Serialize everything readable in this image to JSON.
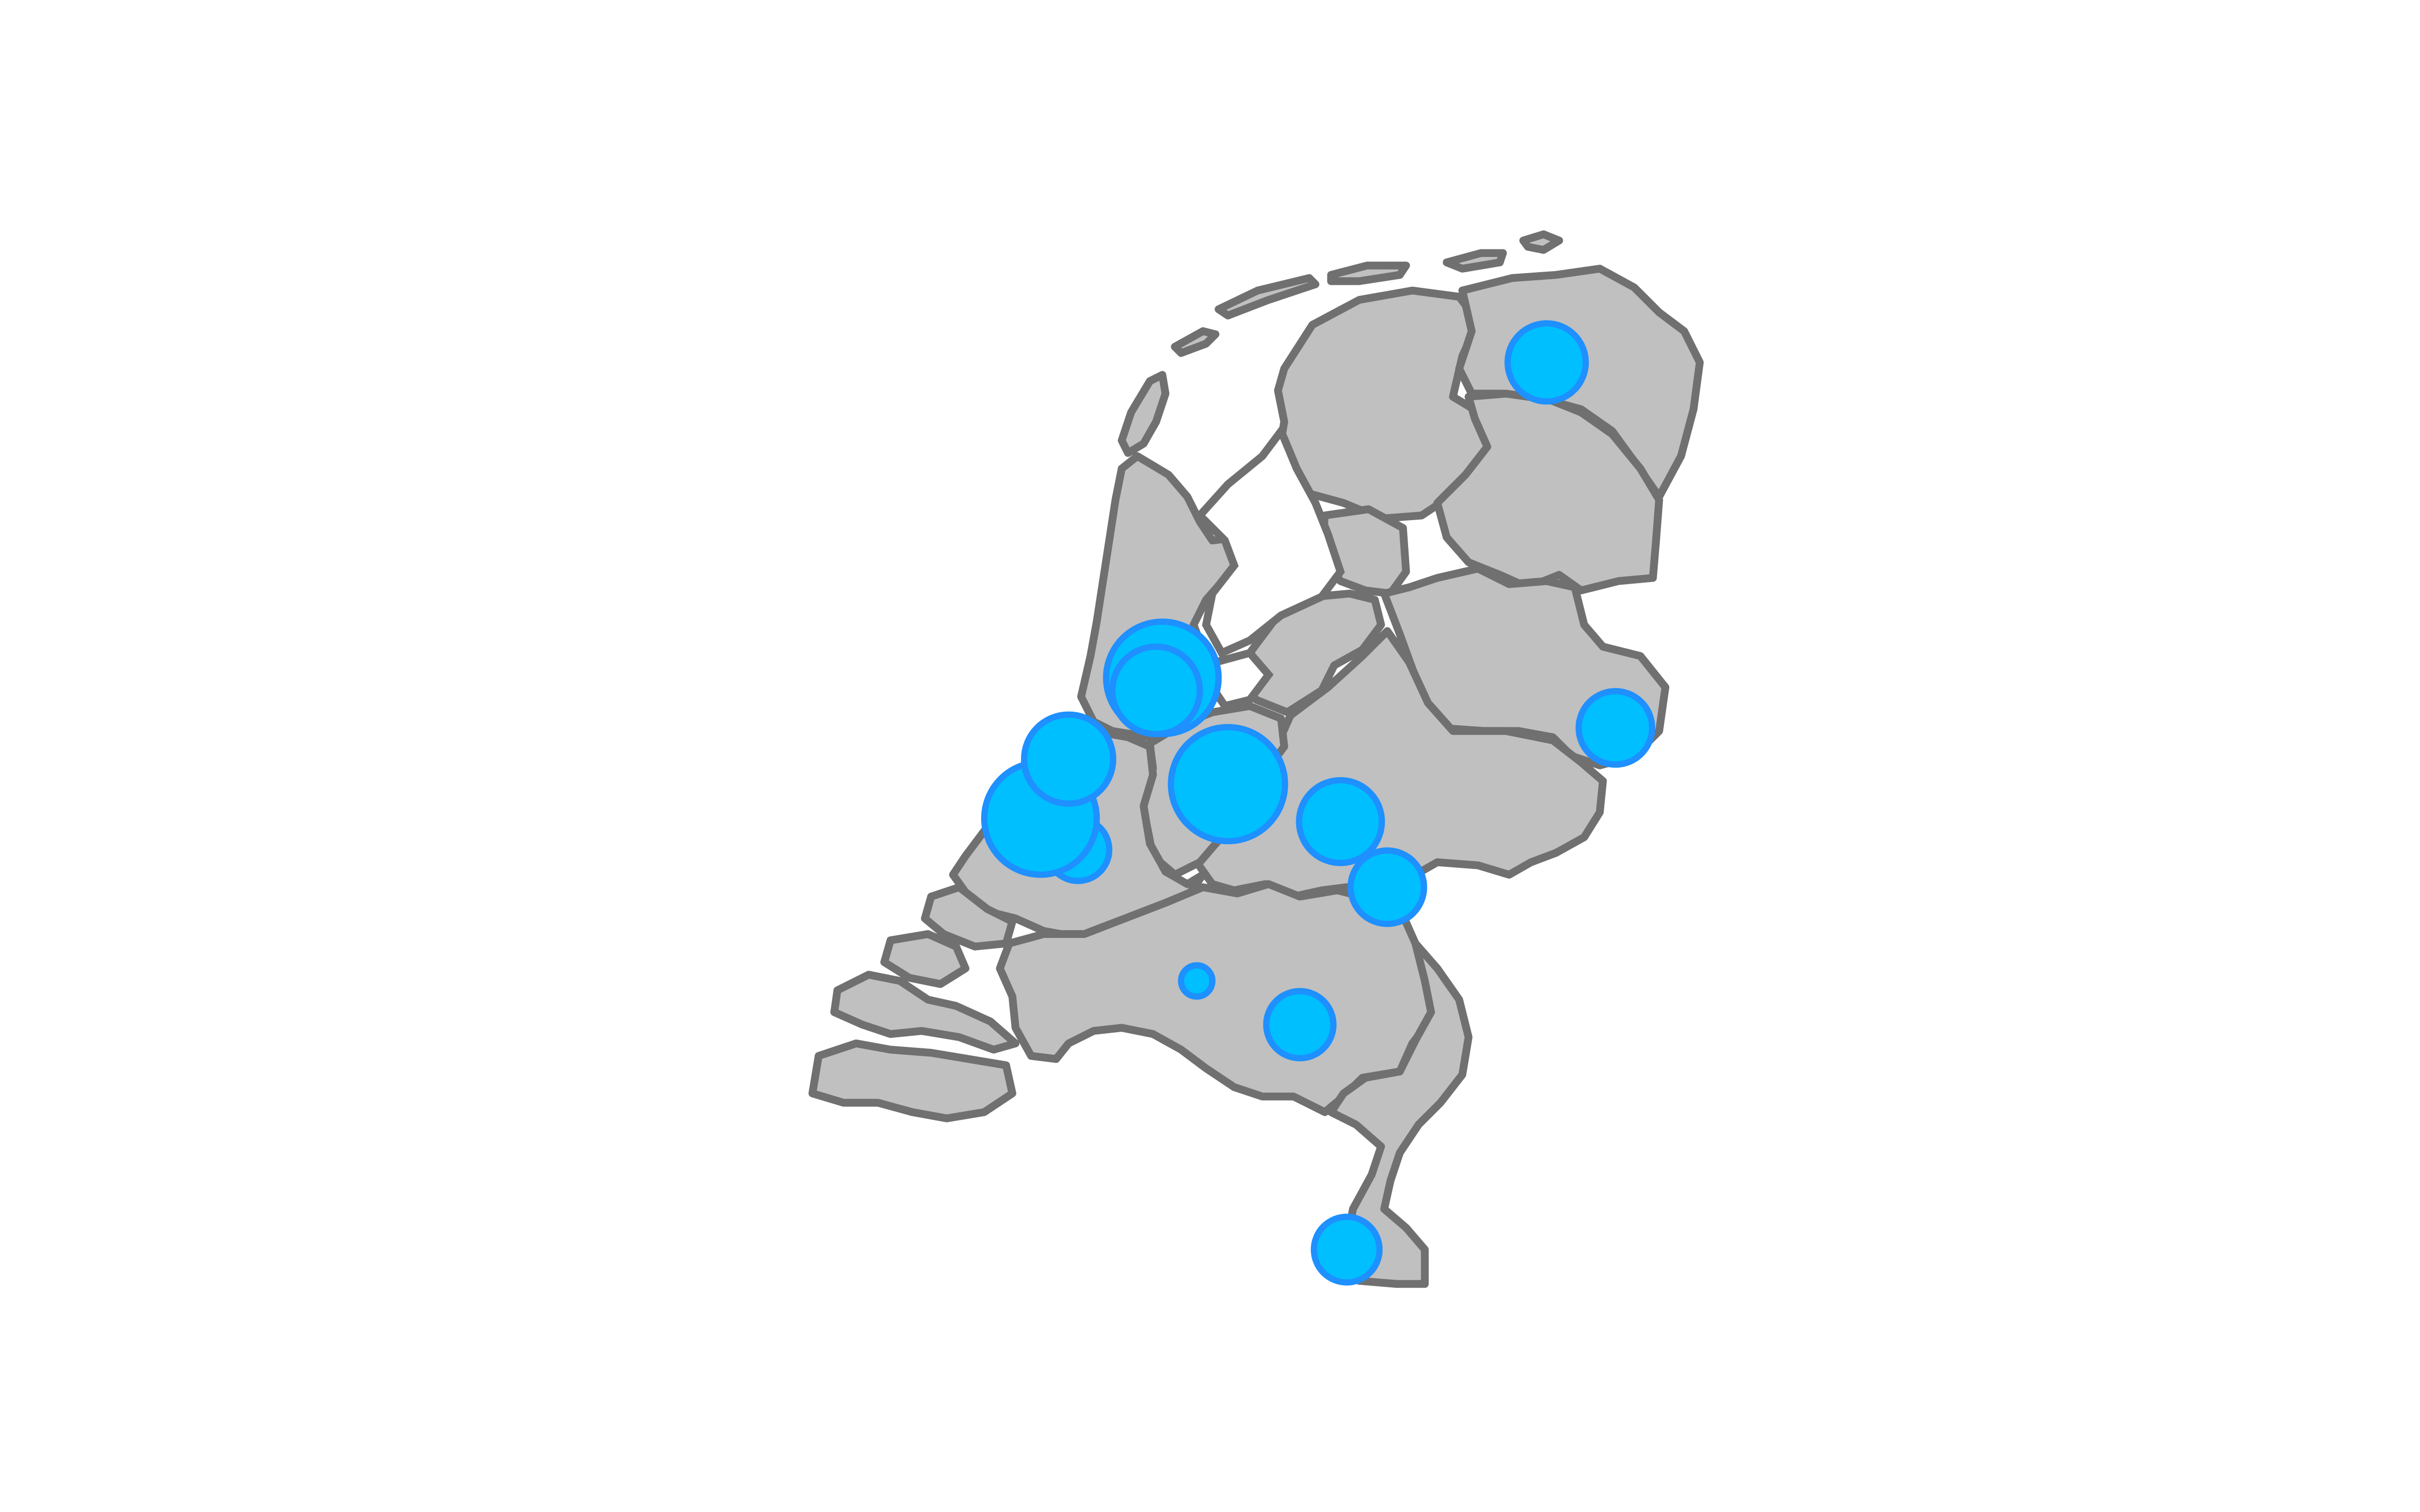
{
  "map": {
    "country": "Netherlands",
    "land_color": "#c0c0c0",
    "border_color": "#707070",
    "background": "#ffffff"
  },
  "markers": {
    "fill": "#00bfff",
    "stroke": "#1e90ff",
    "relative_sizes": {
      "groningen": 0.5,
      "enschede": 0.47,
      "amsterdam": 0.72,
      "amsterdam-2": 0.56,
      "haarlem": 0.57,
      "den-haag": 0.72,
      "delft": 0.4,
      "utrecht": 0.73,
      "arnhem": 0.53,
      "nijmegen": 0.47,
      "tilburg": 0.2,
      "eindhoven": 0.43,
      "maastricht": 0.42
    }
  }
}
